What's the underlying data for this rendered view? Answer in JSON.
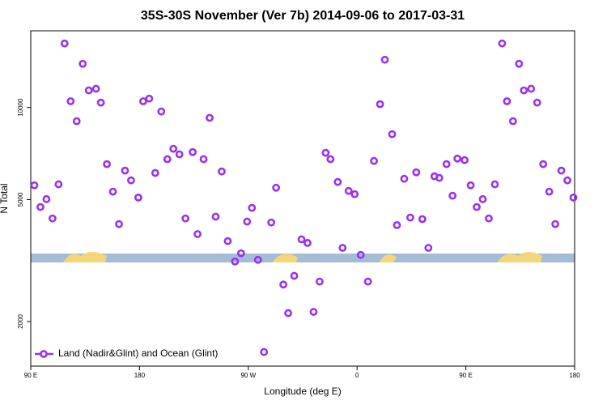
{
  "chart_data": {
    "type": "scatter",
    "title": "35S-30S November (Ver 7b)   2014-09-06 to 2017-03-31",
    "xlabel": "Longitude (deg E)",
    "ylabel": "N Total",
    "xlim": [
      90,
      540
    ],
    "ylim": [
      1430,
      17800
    ],
    "log_y": true,
    "xticks": [
      {
        "value": 90,
        "label": "90 E"
      },
      180,
      {
        "value": 270,
        "label": "90 W"
      },
      {
        "value": 360,
        "label": "0"
      },
      {
        "value": 450,
        "label": "90 E"
      },
      {
        "value": 540,
        "label": "180"
      }
    ],
    "yticks": [
      2000,
      5000,
      10000
    ],
    "legend": "lower left",
    "series": [
      {
        "name": "Land (Nadir&Glint) and Ocean (Glint)",
        "color": "#9b30f0",
        "x": [
          93,
          98,
          103,
          108,
          113,
          118,
          123,
          128,
          133,
          138,
          144,
          148,
          153,
          158,
          163,
          168,
          173,
          179,
          183,
          188,
          193,
          198,
          203,
          208,
          213,
          218,
          224,
          228,
          233,
          238,
          243,
          248,
          253,
          259,
          264,
          269,
          273,
          278,
          283,
          289,
          293,
          299,
          303,
          308,
          314,
          319,
          324,
          329,
          334,
          338,
          344,
          348,
          353,
          358,
          363,
          369,
          374,
          379,
          383,
          389,
          393,
          399,
          404,
          409,
          414,
          419,
          424,
          428,
          434,
          439,
          443,
          449,
          454,
          459,
          464,
          469,
          474,
          480,
          484,
          489,
          494,
          498,
          504,
          509,
          514,
          519,
          524,
          529,
          534,
          539
        ],
        "values": [
          5570,
          4730,
          5020,
          4340,
          5610,
          16180,
          10480,
          9020,
          13890,
          11370,
          11510,
          10370,
          6530,
          5310,
          4160,
          6220,
          5780,
          5080,
          10480,
          10690,
          6110,
          9700,
          6780,
          7330,
          7030,
          4340,
          7150,
          3860,
          6780,
          9250,
          4400,
          6180,
          3660,
          3140,
          3340,
          4240,
          4700,
          3180,
          1590,
          4210,
          5470,
          2640,
          2130,
          2820,
          3710,
          3610,
          2150,
          2700,
          7110,
          6780,
          5710,
          3480,
          5340,
          5210,
          3300,
          2700,
          6690,
          10250,
          14320,
          8180,
          4130,
          5850,
          4370,
          6140,
          4320,
          3480,
          5960,
          5890,
          6530,
          5150,
          6810,
          6730,
          5570,
          4730,
          5020,
          4340,
          5610,
          16180,
          10480,
          9020,
          13890,
          11370,
          11510,
          10370,
          6530,
          5310,
          4160,
          6220,
          5780,
          5080
        ]
      }
    ]
  }
}
